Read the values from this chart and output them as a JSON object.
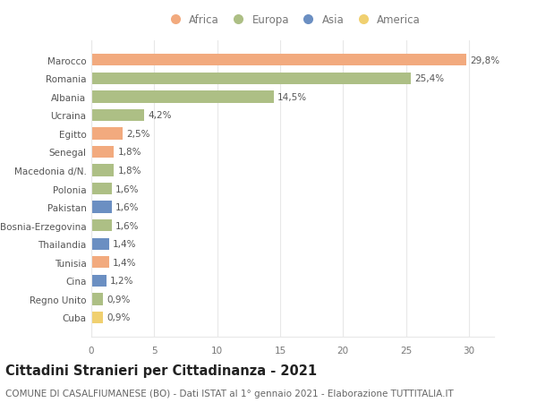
{
  "countries": [
    "Marocco",
    "Romania",
    "Albania",
    "Ucraina",
    "Egitto",
    "Senegal",
    "Macedonia d/N.",
    "Polonia",
    "Pakistan",
    "Bosnia-Erzegovina",
    "Thailandia",
    "Tunisia",
    "Cina",
    "Regno Unito",
    "Cuba"
  ],
  "values": [
    29.8,
    25.4,
    14.5,
    4.2,
    2.5,
    1.8,
    1.8,
    1.6,
    1.6,
    1.6,
    1.4,
    1.4,
    1.2,
    0.9,
    0.9
  ],
  "labels": [
    "29,8%",
    "25,4%",
    "14,5%",
    "4,2%",
    "2,5%",
    "1,8%",
    "1,8%",
    "1,6%",
    "1,6%",
    "1,6%",
    "1,4%",
    "1,4%",
    "1,2%",
    "0,9%",
    "0,9%"
  ],
  "continents": [
    "Africa",
    "Europa",
    "Europa",
    "Europa",
    "Africa",
    "Africa",
    "Europa",
    "Europa",
    "Asia",
    "Europa",
    "Asia",
    "Africa",
    "Asia",
    "Europa",
    "America"
  ],
  "continent_colors": {
    "Africa": "#F2AA7E",
    "Europa": "#ADBF85",
    "Asia": "#6B8FC2",
    "America": "#F0D070"
  },
  "legend_order": [
    "Africa",
    "Europa",
    "Asia",
    "America"
  ],
  "title": "Cittadini Stranieri per Cittadinanza - 2021",
  "subtitle": "COMUNE DI CASALFIUMANESE (BO) - Dati ISTAT al 1° gennaio 2021 - Elaborazione TUTTITALIA.IT",
  "xlim": [
    0,
    32
  ],
  "xticks": [
    0,
    5,
    10,
    15,
    20,
    25,
    30
  ],
  "background_color": "#FFFFFF",
  "grid_color": "#E8E8E8",
  "bar_height": 0.65,
  "title_fontsize": 10.5,
  "subtitle_fontsize": 7.5,
  "label_fontsize": 7.5,
  "tick_fontsize": 7.5,
  "legend_fontsize": 8.5
}
